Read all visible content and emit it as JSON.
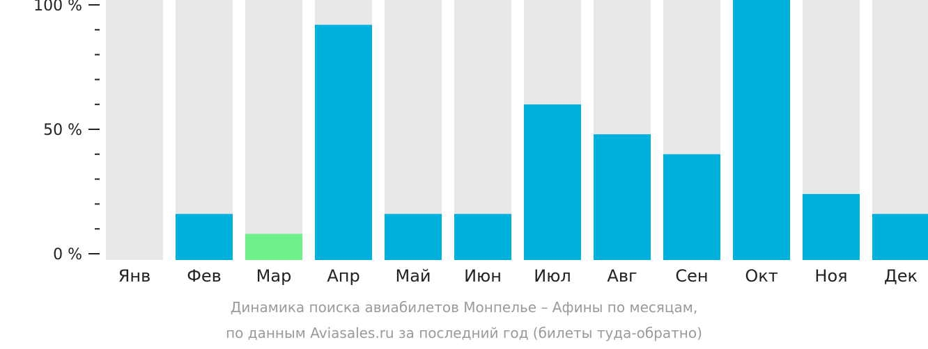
{
  "chart_data": {
    "type": "bar",
    "categories": [
      "Янв",
      "Фев",
      "Мар",
      "Апр",
      "Май",
      "Июн",
      "Июл",
      "Авг",
      "Сен",
      "Окт",
      "Ноя",
      "Дек"
    ],
    "values": [
      0,
      16,
      8,
      92,
      16,
      16,
      60,
      48,
      40,
      104,
      24,
      16
    ],
    "highlight_index": 2,
    "ylim": [
      0,
      100
    ],
    "yticks": [
      {
        "value": 100,
        "label": "100 %"
      },
      {
        "value": 50,
        "label": "50 %"
      },
      {
        "value": 0,
        "label": "0 %"
      }
    ],
    "minor_tick_step": 10,
    "title": "",
    "xlabel": "",
    "ylabel": "",
    "grid": false,
    "colors": {
      "bar": "#00b0dd",
      "highlight": "#6ef08a",
      "background_bar": "#e8e8e8",
      "axis": "#222222"
    }
  },
  "caption": {
    "line1": "Динамика поиска авиабилетов Монпелье – Афины по месяцам,",
    "line2": "по данным Aviasales.ru за последний год (билеты туда-обратно)"
  }
}
